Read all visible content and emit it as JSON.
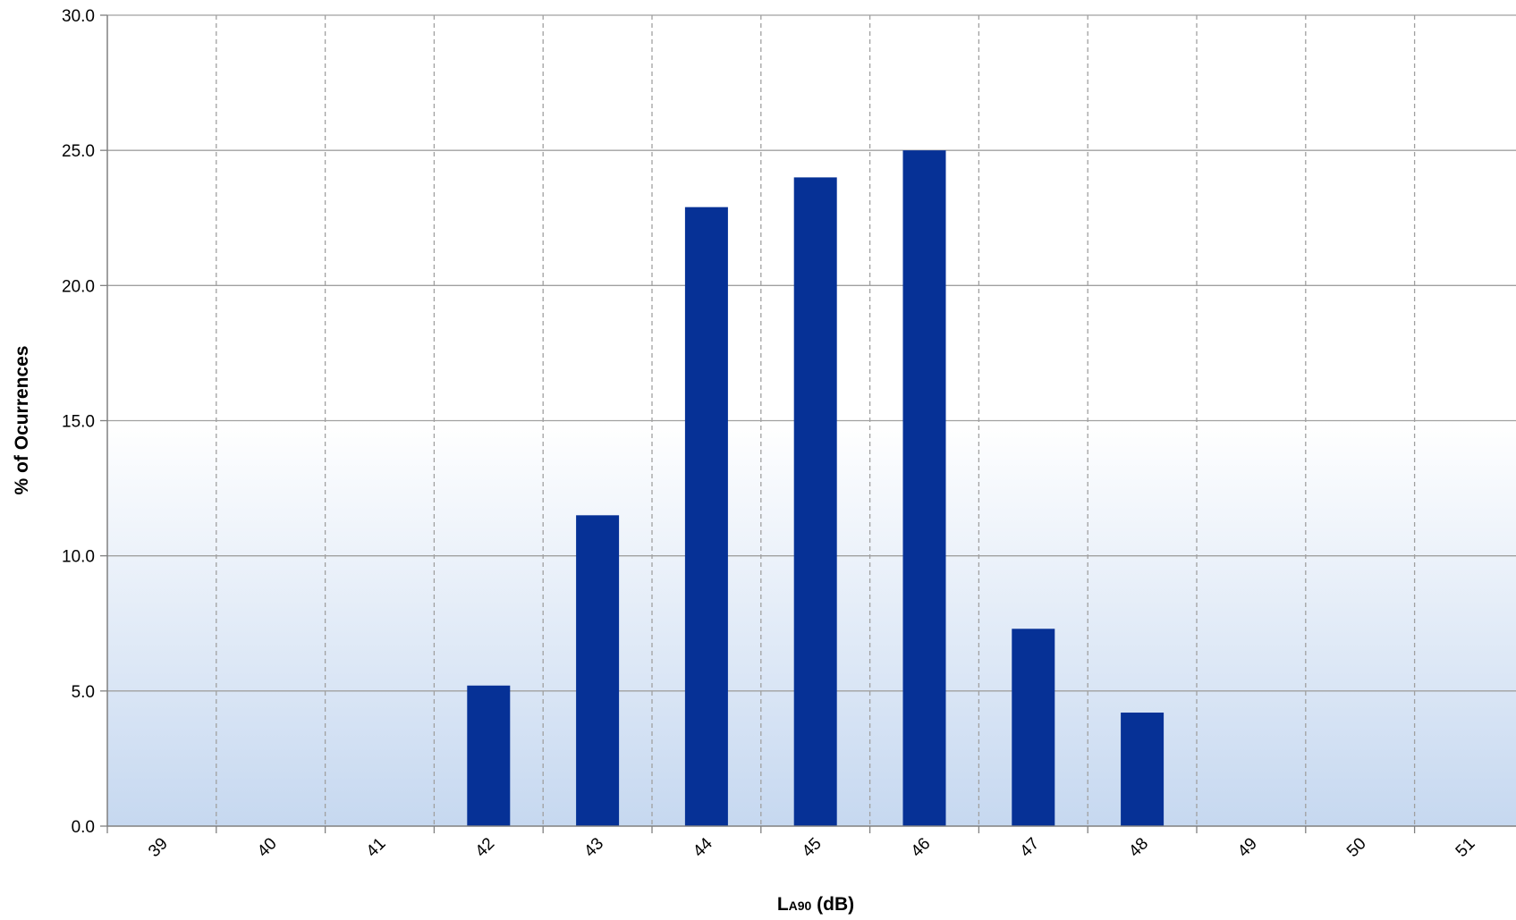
{
  "chart_data": {
    "type": "bar",
    "categories": [
      "39",
      "40",
      "41",
      "42",
      "43",
      "44",
      "45",
      "46",
      "47",
      "48",
      "49",
      "50",
      "51"
    ],
    "values": [
      0,
      0,
      0,
      5.2,
      11.5,
      22.9,
      24.0,
      25.0,
      7.3,
      4.2,
      0,
      0,
      0
    ],
    "y_tick_labels": [
      "0.0",
      "5.0",
      "10.0",
      "15.0",
      "20.0",
      "25.0",
      "30.0"
    ],
    "ylim": [
      0,
      30
    ],
    "ylabel": "% of Ocurrences",
    "xlabel": {
      "main": "L",
      "subscript": "A90",
      "suffix": " (dB)"
    },
    "colors": {
      "bar": "#063196",
      "gridline": "#a0a0a0",
      "axis": "#808080",
      "plot_gradient_top": "#ffffff",
      "plot_gradient_bottom": "#c6d8f0"
    },
    "grid": {
      "horizontal": "solid",
      "vertical": "dashed"
    },
    "legend": "none"
  }
}
